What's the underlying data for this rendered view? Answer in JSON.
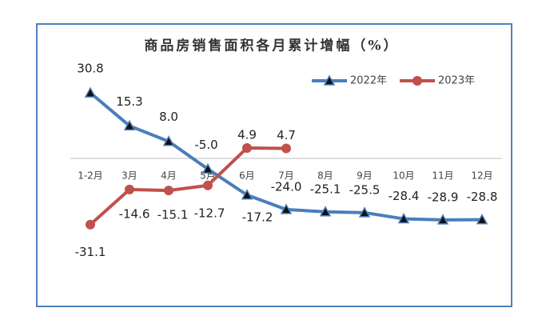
{
  "chart_data": {
    "type": "line",
    "title": "商品房销售面积各月累计增幅（%）",
    "categories": [
      "1-2月",
      "3月",
      "4月",
      "5月",
      "6月",
      "7月",
      "8月",
      "9月",
      "10月",
      "11月",
      "12月"
    ],
    "series": [
      {
        "name": "2022年",
        "color": "#4a7ebb",
        "marker": "triangle",
        "values": [
          30.8,
          15.3,
          8.0,
          -5.0,
          -17.2,
          -24.0,
          -25.1,
          -25.5,
          -28.4,
          -28.9,
          -28.8
        ],
        "value_labels": [
          "30.8",
          "15.3",
          "8.0",
          "-5.0",
          "-17.2",
          "-24.0",
          "-25.1",
          "-25.5",
          "-28.4",
          "-28.9",
          "-28.8"
        ]
      },
      {
        "name": "2023年",
        "color": "#c0504d",
        "marker": "circle",
        "values": [
          -31.1,
          -14.6,
          -15.1,
          -12.7,
          4.9,
          4.7,
          null,
          null,
          null,
          null,
          null
        ],
        "value_labels": [
          "-31.1",
          "-14.6",
          "-15.1",
          "-12.7",
          "4.9",
          "4.7",
          null,
          null,
          null,
          null,
          null
        ]
      }
    ],
    "ylim": [
      -40,
      40
    ],
    "legend": "top-right"
  }
}
